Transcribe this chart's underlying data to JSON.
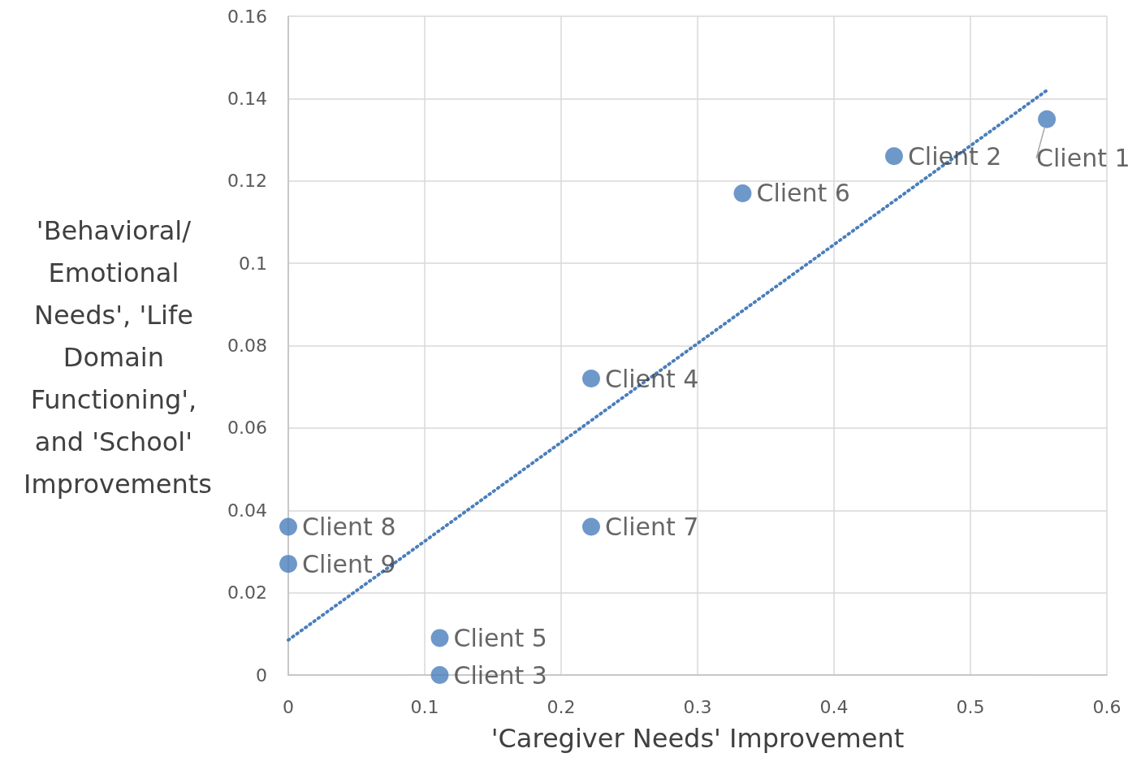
{
  "chart_data": {
    "type": "scatter",
    "xlabel": "'Caregiver Needs' Improvement",
    "ylabel": "'Behavioral/ Emotional Needs', 'Life Domain Functioning', and 'School' Improvements",
    "xlim": [
      0,
      0.6
    ],
    "xticks": [
      0,
      0.1,
      0.2,
      0.3,
      0.4,
      0.5,
      0.6
    ],
    "ylim": [
      0,
      0.16
    ],
    "yticks": [
      0,
      0.02,
      0.04,
      0.06,
      0.08,
      0.1,
      0.12,
      0.14,
      0.16
    ],
    "grid": true,
    "marker": "circle",
    "series": [
      {
        "color": "#4a7ebb",
        "x": [
          0.556,
          0.444,
          0.111,
          0.222,
          0.111,
          0.333,
          0.222,
          0,
          0
        ],
        "values": [
          0.135,
          0.126,
          0,
          0.072,
          0.009,
          0.117,
          0.036,
          0.036,
          0.027
        ]
      },
      {
        "type": "line",
        "color": "#4a7ebb",
        "line_style": "dotted",
        "marker": "none",
        "x": [
          0,
          0.556
        ],
        "values": [
          0.0085,
          0.142
        ]
      }
    ],
    "annotations": [
      {
        "text": "Client 1",
        "x": 0.556,
        "y": 0.135
      },
      {
        "text": "Client 2",
        "x": 0.444,
        "y": 0.126
      },
      {
        "text": "Client 3",
        "x": 0.111,
        "y": 0
      },
      {
        "text": "Client 4",
        "x": 0.222,
        "y": 0.072
      },
      {
        "text": "Client 5",
        "x": 0.111,
        "y": 0.009
      },
      {
        "text": "Client 6",
        "x": 0.333,
        "y": 0.117
      },
      {
        "text": "Client 7",
        "x": 0.222,
        "y": 0.036
      },
      {
        "text": "Client 8",
        "x": 0,
        "y": 0.036
      },
      {
        "text": "Client 9",
        "x": 0,
        "y": 0.027
      }
    ]
  }
}
